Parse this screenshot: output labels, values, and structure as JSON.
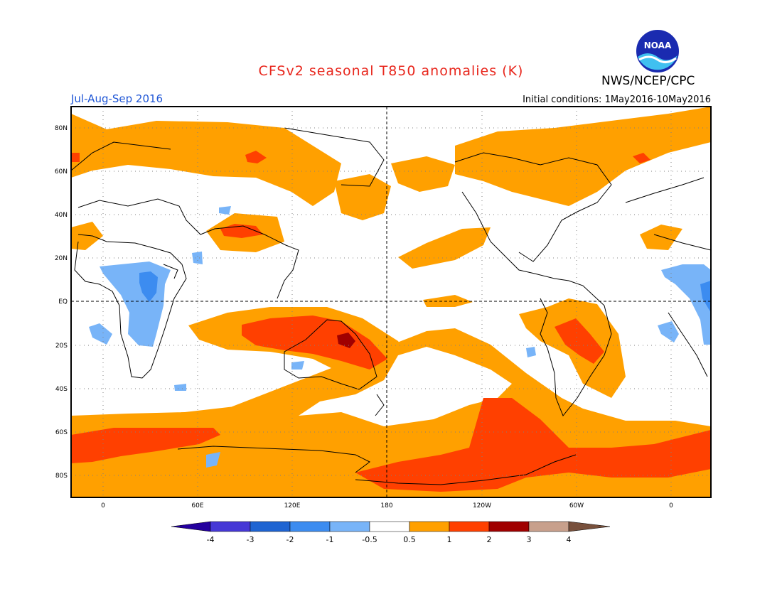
{
  "header": {
    "title": "CFSv2 seasonal T850 anomalies (K)",
    "agency": "NWS/NCEP/CPC",
    "season": "Jul-Aug-Sep 2016",
    "initial_conditions": "Initial conditions: 1May2016-10May2016",
    "logo_text": "NOAA"
  },
  "colors": {
    "title": "#e8261c",
    "season": "#1f56d6",
    "lt_m4": "#24009e",
    "m4_m3": "#4638d6",
    "m3_m2": "#1e64d2",
    "m2_m1": "#3c8cf0",
    "m1_m05": "#78b4f8",
    "neutral": "#ffffff",
    "c05_1": "#ffa000",
    "c1_2": "#ff4000",
    "c2_3": "#a00000",
    "c3_4": "#c8a08c",
    "gt4": "#78503c"
  },
  "map": {
    "lat_ticks": [
      "80N",
      "60N",
      "40N",
      "20N",
      "EQ",
      "20S",
      "40S",
      "60S",
      "80S"
    ],
    "lon_ticks": [
      "0",
      "60E",
      "120E",
      "180",
      "120W",
      "60W",
      "0"
    ]
  },
  "colorbar": {
    "labels": [
      "-4",
      "-3",
      "-2",
      "-1",
      "-0.5",
      "0.5",
      "1",
      "2",
      "3",
      "4"
    ]
  }
}
